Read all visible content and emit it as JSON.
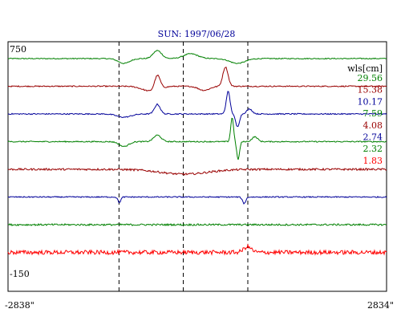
{
  "chart_data": {
    "type": "line",
    "title": "SUN: 1997/06/28",
    "y_axis": {
      "top_label": "750",
      "bottom_label": "-150"
    },
    "x_axis": {
      "left_label": "-2838\"",
      "right_label": "2834\""
    },
    "legend": {
      "placement": "right",
      "header": "wls[cm]",
      "entries": [
        {
          "label": "29.56",
          "color": "#008000"
        },
        {
          "label": "15.38",
          "color": "#990000"
        },
        {
          "label": "10.17",
          "color": "#000099"
        },
        {
          "label": "7.59",
          "color": "#008000"
        },
        {
          "label": "4.08",
          "color": "#990000"
        },
        {
          "label": "2.74",
          "color": "#000099"
        },
        {
          "label": "2.32",
          "color": "#008000"
        },
        {
          "label": "1.83",
          "color": "#ff0000"
        }
      ]
    },
    "vertical_markers": [
      -1175,
      -212,
      755
    ],
    "series": [
      {
        "color": "#008000",
        "noise": 0.6,
        "events": [
          {
            "x": -1100,
            "amp": -6,
            "w": 120
          },
          {
            "x": -600,
            "amp": 10,
            "w": 90
          },
          {
            "x": -100,
            "amp": 6,
            "w": 150
          },
          {
            "x": 600,
            "amp": -6,
            "w": 160
          }
        ]
      },
      {
        "color": "#990000",
        "noise": 0.7,
        "events": [
          {
            "x": -700,
            "amp": -6,
            "w": 180
          },
          {
            "x": -600,
            "amp": 18,
            "w": 60
          },
          {
            "x": 420,
            "amp": 24,
            "w": 55
          },
          {
            "x": 100,
            "amp": -5,
            "w": 120
          }
        ]
      },
      {
        "color": "#000099",
        "noise": 0.7,
        "events": [
          {
            "x": -1100,
            "amp": -4,
            "w": 150
          },
          {
            "x": -600,
            "amp": 12,
            "w": 60
          },
          {
            "x": 460,
            "amp": 28,
            "w": 40
          },
          {
            "x": 600,
            "amp": -16,
            "w": 40
          },
          {
            "x": 780,
            "amp": 6,
            "w": 60
          }
        ]
      },
      {
        "color": "#008000",
        "noise": 0.7,
        "events": [
          {
            "x": -1100,
            "amp": -6,
            "w": 100
          },
          {
            "x": -600,
            "amp": 8,
            "w": 80
          },
          {
            "x": 520,
            "amp": 30,
            "w": 30
          },
          {
            "x": 610,
            "amp": -22,
            "w": 30
          },
          {
            "x": 860,
            "amp": 6,
            "w": 60
          }
        ]
      },
      {
        "color": "#990000",
        "noise": 1.2,
        "events": [
          {
            "x": -200,
            "amp": -6,
            "w": 500
          }
        ]
      },
      {
        "color": "#000099",
        "noise": 0.7,
        "events": [
          {
            "x": -1170,
            "amp": -7,
            "w": 30
          },
          {
            "x": 700,
            "amp": -8,
            "w": 35
          }
        ]
      },
      {
        "color": "#008000",
        "noise": 1.1,
        "events": []
      },
      {
        "color": "#ff0000",
        "noise": 2.6,
        "events": [
          {
            "x": 750,
            "amp": 7,
            "w": 80
          }
        ]
      }
    ],
    "grid": false
  }
}
